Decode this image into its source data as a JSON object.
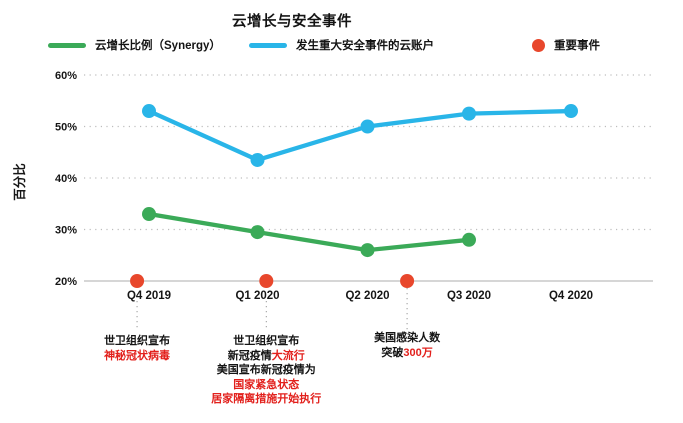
{
  "title": "云增长与安全事件",
  "colors": {
    "green": "#3BAA58",
    "cyan": "#29B5E8",
    "red_dot": "#E8472C",
    "red_text": "#E2201C",
    "grid": "#BDBDBD",
    "axis": "#C9C9C9",
    "connector": "#9A9A9A",
    "text": "#161616"
  },
  "legend": [
    {
      "label": "云增长比例（Synergy）",
      "swatch": "line",
      "color_key": "green"
    },
    {
      "label": "发生重大安全事件的云账户",
      "swatch": "line",
      "color_key": "cyan"
    },
    {
      "label": "重要事件",
      "swatch": "dot",
      "color_key": "red_dot"
    }
  ],
  "chart_data": {
    "type": "line",
    "title": "云增长与安全事件",
    "xlabel": "",
    "ylabel": "百分比",
    "ylim": [
      20,
      60
    ],
    "yticks": [
      20,
      30,
      40,
      50,
      60
    ],
    "ytick_suffix": "%",
    "grid": "horizontal-dotted",
    "legend_position": "top",
    "categories": [
      "Q4 2019",
      "Q1 2020",
      "Q2 2020",
      "Q3 2020",
      "Q4 2020"
    ],
    "series": [
      {
        "id": "cloud-growth",
        "name": "云增长比例（Synergy）",
        "color_key": "green",
        "values": [
          33,
          29.5,
          26,
          28,
          null
        ]
      },
      {
        "id": "security-incident-accounts",
        "name": "发生重大安全事件的云账户",
        "color_key": "cyan",
        "values": [
          53,
          43.5,
          50,
          52.5,
          53
        ]
      }
    ],
    "events": [
      {
        "x": -0.11,
        "label": "重要事件",
        "annotation": [
          [
            {
              "text": "世卫组织宣布",
              "red": false
            }
          ],
          [
            {
              "text": "神秘冠状病毒",
              "red": true
            }
          ]
        ]
      },
      {
        "x": 1.08,
        "label": "重要事件",
        "annotation": [
          [
            {
              "text": "世卫组织宣布",
              "red": false
            }
          ],
          [
            {
              "text": "新冠疫情",
              "red": false
            },
            {
              "text": "大流行",
              "red": true
            }
          ],
          [
            {
              "text": "美国宣布新冠疫情为",
              "red": false
            }
          ],
          [
            {
              "text": "国家紧急状态",
              "red": true
            }
          ],
          [
            {
              "text": "居家隔离措施开始执行",
              "red": true
            }
          ]
        ]
      },
      {
        "x": 2.39,
        "label": "重要事件",
        "annotation": [
          [
            {
              "text": "美国感染人数",
              "red": false
            }
          ],
          [
            {
              "text": "突破",
              "red": false
            },
            {
              "text": "300万",
              "red": true
            }
          ]
        ]
      }
    ]
  }
}
